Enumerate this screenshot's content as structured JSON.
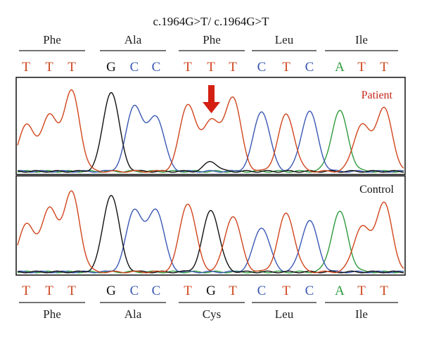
{
  "title": "c.1964G>T/ c.1964G>T",
  "colors": {
    "T": "#d0451c",
    "C": "#3a58b4",
    "G": "#111111",
    "A": "#2e9a3c",
    "patient_label": "#c5281c",
    "arrow": "#d32012"
  },
  "top": {
    "amino_acids": [
      "Phe",
      "Ala",
      "Phe",
      "Leu",
      "Ile"
    ],
    "bases": [
      "T",
      "T",
      "T",
      "G",
      "C",
      "C",
      "T",
      "T",
      "T",
      "C",
      "T",
      "C",
      "A",
      "T",
      "T"
    ]
  },
  "bottom": {
    "amino_acids": [
      "Phe",
      "Ala",
      "Cys",
      "Leu",
      "Ile"
    ],
    "bases": [
      "T",
      "T",
      "T",
      "G",
      "C",
      "C",
      "T",
      "G",
      "T",
      "C",
      "T",
      "C",
      "A",
      "T",
      "T"
    ]
  },
  "panels": {
    "patient": {
      "label": "Patient",
      "peaks": [
        {
          "base": "T",
          "height": 0.55
        },
        {
          "base": "T",
          "height": 0.65
        },
        {
          "base": "T",
          "height": 0.95
        },
        {
          "base": "G",
          "height": 0.95
        },
        {
          "base": "C",
          "height": 0.78
        },
        {
          "base": "C",
          "height": 0.65
        },
        {
          "base": "T",
          "height": 0.8
        },
        {
          "base": "T",
          "height": 0.6
        },
        {
          "base": "T",
          "height": 0.88
        },
        {
          "base": "C",
          "height": 0.72
        },
        {
          "base": "T",
          "height": 0.68
        },
        {
          "base": "C",
          "height": 0.72
        },
        {
          "base": "A",
          "height": 0.72
        },
        {
          "base": "T",
          "height": 0.55
        },
        {
          "base": "T",
          "height": 0.75
        }
      ],
      "minor_peaks": [
        {
          "index": 7,
          "base": "G",
          "height": 0.12
        }
      ]
    },
    "control": {
      "label": "Control",
      "peaks": [
        {
          "base": "T",
          "height": 0.55
        },
        {
          "base": "T",
          "height": 0.72
        },
        {
          "base": "T",
          "height": 0.92
        },
        {
          "base": "G",
          "height": 0.9
        },
        {
          "base": "C",
          "height": 0.72
        },
        {
          "base": "C",
          "height": 0.72
        },
        {
          "base": "T",
          "height": 0.8
        },
        {
          "base": "G",
          "height": 0.72
        },
        {
          "base": "T",
          "height": 0.65
        },
        {
          "base": "C",
          "height": 0.52
        },
        {
          "base": "T",
          "height": 0.68
        },
        {
          "base": "C",
          "height": 0.6
        },
        {
          "base": "A",
          "height": 0.7
        },
        {
          "base": "T",
          "height": 0.52
        },
        {
          "base": "T",
          "height": 0.8
        }
      ],
      "minor_peaks": []
    }
  }
}
